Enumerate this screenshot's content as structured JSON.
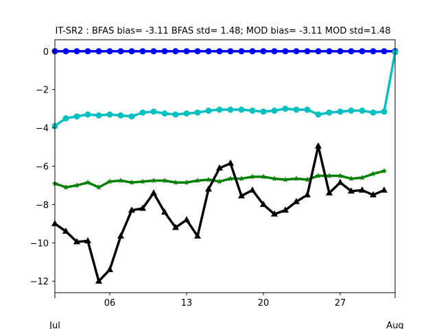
{
  "chart_data": {
    "type": "line",
    "title": "IT-SR2   : BFAS bias= -3.11 BFAS std= 1.48; MOD bias= -3.11 MOD std=1.48",
    "xlabel": "",
    "ylabel": "",
    "x_range": [
      1,
      32
    ],
    "ylim": [
      -12.6,
      0.6
    ],
    "y_ticks": [
      0,
      -2,
      -4,
      -6,
      -8,
      -10,
      -12
    ],
    "y_tick_labels": [
      "0",
      "−2",
      "−4",
      "−6",
      "−8",
      "−10",
      "−12"
    ],
    "x_major_ticks": [
      6,
      13,
      20,
      27
    ],
    "x_major_labels": [
      "06",
      "13",
      "20",
      "27"
    ],
    "x_minor_ticks": [
      1,
      32
    ],
    "x_minor_labels": [
      "Jul",
      "Aug"
    ],
    "grid": false,
    "series": [
      {
        "color": "#0000ff",
        "marker": "circle",
        "x": [
          1,
          2,
          3,
          4,
          5,
          6,
          7,
          8,
          9,
          10,
          11,
          12,
          13,
          14,
          15,
          16,
          17,
          18,
          19,
          20,
          21,
          22,
          23,
          24,
          25,
          26,
          27,
          28,
          29,
          30,
          31,
          32
        ],
        "values": [
          0,
          0,
          0,
          0,
          0,
          0,
          0,
          0,
          0,
          0,
          0,
          0,
          0,
          0,
          0,
          0,
          0,
          0,
          0,
          0,
          0,
          0,
          0,
          0,
          0,
          0,
          0,
          0,
          0,
          0,
          0,
          0
        ]
      },
      {
        "color": "#00bfbf",
        "marker": "circle",
        "x": [
          1,
          2,
          3,
          4,
          5,
          6,
          7,
          8,
          9,
          10,
          11,
          12,
          13,
          14,
          15,
          16,
          17,
          18,
          19,
          20,
          21,
          22,
          23,
          24,
          25,
          26,
          27,
          28,
          29,
          30,
          31,
          32
        ],
        "values": [
          -3.9,
          -3.5,
          -3.4,
          -3.3,
          -3.35,
          -3.3,
          -3.35,
          -3.4,
          -3.2,
          -3.15,
          -3.25,
          -3.3,
          -3.25,
          -3.2,
          -3.1,
          -3.05,
          -3.05,
          -3.05,
          -3.1,
          -3.15,
          -3.1,
          -3.0,
          -3.05,
          -3.05,
          -3.3,
          -3.2,
          -3.15,
          -3.1,
          -3.1,
          -3.2,
          -3.15,
          -0.05
        ]
      },
      {
        "color": "#008000",
        "marker": "star",
        "x": [
          1,
          2,
          3,
          4,
          5,
          6,
          7,
          8,
          9,
          10,
          11,
          12,
          13,
          14,
          15,
          16,
          17,
          18,
          19,
          20,
          21,
          22,
          23,
          24,
          25,
          26,
          27,
          28,
          29,
          30,
          31
        ],
        "values": [
          -6.9,
          -7.1,
          -7.0,
          -6.85,
          -7.1,
          -6.8,
          -6.75,
          -6.85,
          -6.8,
          -6.75,
          -6.75,
          -6.85,
          -6.85,
          -6.75,
          -6.7,
          -6.8,
          -6.65,
          -6.65,
          -6.55,
          -6.55,
          -6.65,
          -6.7,
          -6.65,
          -6.7,
          -6.5,
          -6.5,
          -6.5,
          -6.65,
          -6.6,
          -6.4,
          -6.25
        ]
      },
      {
        "color": "#000000",
        "marker": "triangle",
        "x": [
          1,
          2,
          3,
          4,
          5,
          6,
          7,
          8,
          9,
          10,
          11,
          12,
          13,
          14,
          15,
          16,
          17,
          18,
          19,
          20,
          21,
          22,
          23,
          24,
          25,
          26,
          27,
          28,
          29,
          30,
          31
        ],
        "values": [
          -9.0,
          -9.4,
          -9.95,
          -9.9,
          -12.0,
          -11.4,
          -9.65,
          -8.3,
          -8.2,
          -7.4,
          -8.4,
          -9.2,
          -8.8,
          -9.65,
          -7.2,
          -6.1,
          -5.85,
          -7.55,
          -7.25,
          -8.0,
          -8.5,
          -8.3,
          -7.85,
          -7.5,
          -4.95,
          -7.4,
          -6.85,
          -7.3,
          -7.25,
          -7.5,
          -7.25
        ]
      }
    ]
  }
}
